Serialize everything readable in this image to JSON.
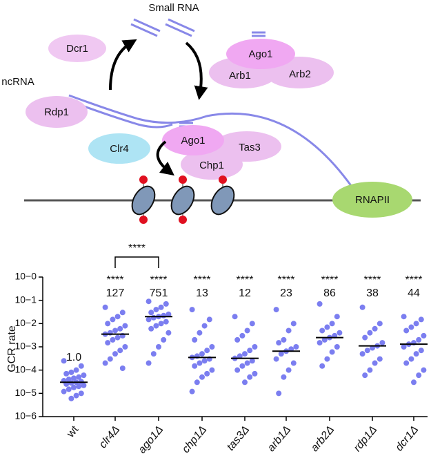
{
  "diagram": {
    "small_rna": "Small RNA",
    "ncrna": "ncRNA",
    "dcr1": "Dcr1",
    "ago1_top": "Ago1",
    "arb1": "Arb1",
    "arb2": "Arb2",
    "rdp1": "Rdp1",
    "clr4": "Clr4",
    "ago1_mid": "Ago1",
    "tas3": "Tas3",
    "chp1": "Chp1",
    "rnapii": "RNAPII"
  },
  "chart_data": {
    "type": "dotplot",
    "y_label": "GCR rate",
    "log_scale": true,
    "color": "#7b7ef0",
    "categories": [
      "wt",
      "clr4Δ",
      "ago1Δ",
      "chp1Δ",
      "tas3Δ",
      "arb1Δ",
      "arb2Δ",
      "rdp1Δ",
      "dcr1Δ"
    ],
    "ylim": [
      1e-06,
      1
    ],
    "yticks": [
      {
        "value": 1e-06,
        "label": "10−6"
      },
      {
        "value": 1e-05,
        "label": "10−5"
      },
      {
        "value": 0.0001,
        "label": "10−4"
      },
      {
        "value": 0.001,
        "label": "10−3"
      },
      {
        "value": 0.01,
        "label": "10−2"
      },
      {
        "value": 0.1,
        "label": "10−1"
      },
      {
        "value": 1,
        "label": "10−0"
      }
    ],
    "medians": [
      3e-05,
      0.0035,
      0.02,
      0.00035,
      0.00032,
      0.00065,
      0.0025,
      0.0011,
      0.0013
    ],
    "fold_change_labels": [
      "1.0",
      "127",
      "751",
      "13",
      "12",
      "23",
      "86",
      "38",
      "44"
    ],
    "significance": [
      null,
      "****",
      "****",
      "****",
      "****",
      "****",
      "****",
      "****",
      "****"
    ],
    "comparison": {
      "between": [
        "clr4Δ",
        "ago1Δ"
      ],
      "significance": "****"
    },
    "points": [
      [
        0.00025,
        0.00015,
        0.0001,
        8e-05,
        7e-05,
        6e-05,
        5e-05,
        4.5e-05,
        4e-05,
        3.5e-05,
        3.2e-05,
        3e-05,
        2.8e-05,
        2.5e-05,
        2.2e-05,
        2e-05,
        1.8e-05,
        1.5e-05,
        1.2e-05,
        1e-05,
        8e-06,
        6e-06
      ],
      [
        0.05,
        0.03,
        0.02,
        0.015,
        0.01,
        0.008,
        0.006,
        0.005,
        0.004,
        0.0035,
        0.003,
        0.0025,
        0.002,
        0.0015,
        0.001,
        0.0007,
        0.0005,
        0.0003,
        0.0002,
        0.00012
      ],
      [
        0.09,
        0.07,
        0.05,
        0.04,
        0.03,
        0.025,
        0.022,
        0.02,
        0.018,
        0.015,
        0.012,
        0.01,
        0.008,
        0.006,
        0.004,
        0.002,
        0.001,
        0.0005,
        0.0002
      ],
      [
        0.04,
        0.015,
        0.008,
        0.004,
        0.002,
        0.001,
        0.0007,
        0.0005,
        0.0004,
        0.00035,
        0.0003,
        0.00025,
        0.0002,
        0.00015,
        0.0001,
        7e-05,
        5e-05,
        3e-05,
        1.2e-05
      ],
      [
        0.02,
        0.01,
        0.005,
        0.003,
        0.002,
        0.001,
        0.0007,
        0.0005,
        0.0004,
        0.00032,
        0.00025,
        0.0002,
        0.00015,
        0.0001,
        7e-05,
        5e-05,
        3e-05
      ],
      [
        0.04,
        0.01,
        0.005,
        0.002,
        0.0015,
        0.001,
        0.0008,
        0.00065,
        0.0005,
        0.0003,
        0.0002,
        0.0001,
        5e-05,
        1e-05
      ],
      [
        0.07,
        0.02,
        0.01,
        0.007,
        0.005,
        0.004,
        0.003,
        0.0025,
        0.002,
        0.0015,
        0.001,
        0.0006,
        0.0003,
        0.00015
      ],
      [
        0.05,
        0.01,
        0.006,
        0.004,
        0.0025,
        0.0015,
        0.0011,
        0.0009,
        0.0007,
        0.0005,
        0.0003,
        0.0002,
        0.0001,
        6e-05
      ],
      [
        0.02,
        0.015,
        0.01,
        0.007,
        0.005,
        0.003,
        0.002,
        0.0015,
        0.0013,
        0.001,
        0.0007,
        0.0005,
        0.0003,
        0.0002,
        0.0001,
        6e-05,
        3e-05
      ]
    ]
  }
}
